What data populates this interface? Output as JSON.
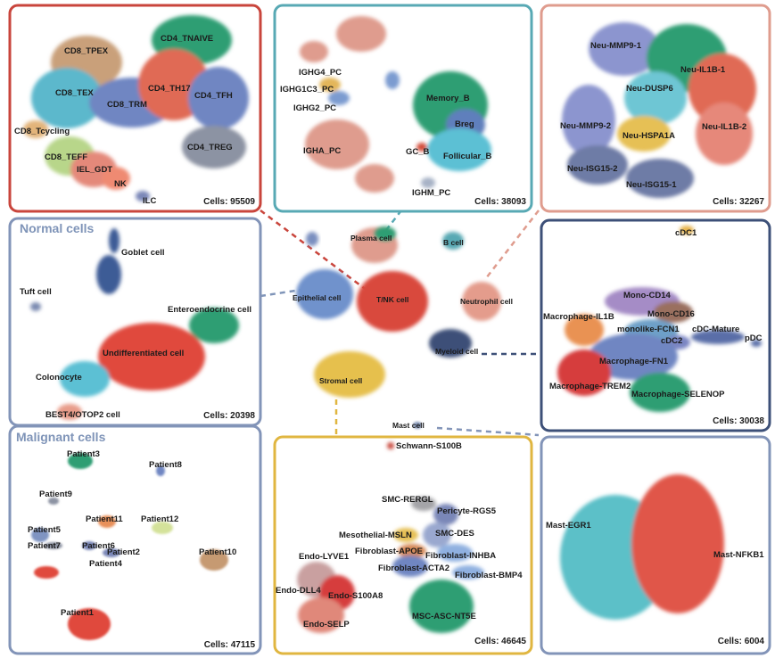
{
  "colors": {
    "red": "#c9453c",
    "teal": "#58a9b4",
    "salmon": "#df9c8e",
    "navy": "#3d5078",
    "slate": "#8294b8",
    "gold": "#e0b640",
    "purple": "#a58cc6",
    "green": "#2f9e73",
    "orange": "#e99253"
  },
  "center": {
    "labels": [
      "Plasma cell",
      "B cell",
      "Epithelial cell",
      "T/NK cell",
      "Neutrophil cell",
      "Myeloid cell",
      "Stromal cell",
      "Mast cell"
    ]
  },
  "tnk": {
    "count": "Cells: 95509",
    "labels": [
      "CD8_TPEX",
      "CD4_TNAIVE",
      "CD8_TEX",
      "CD4_TH17",
      "CD8_TRM",
      "CD4_TFH",
      "CD8_Tcycling",
      "CD4_TREG",
      "CD8_TEFF",
      "IEL_GDT",
      "NK",
      "ILC"
    ]
  },
  "plasma": {
    "count": "Cells: 38093",
    "labels": [
      "IGHG4_PC",
      "IGHG1C3_PC",
      "IGHG2_PC",
      "IGHA_PC",
      "Memory_B",
      "Breg",
      "GC_B",
      "Follicular_B",
      "IGHM_PC"
    ]
  },
  "neutro": {
    "count": "Cells: 32267",
    "labels": [
      "Neu-MMP9-1",
      "Neu-IL1B-1",
      "Neu-DUSP6",
      "Neu-MMP9-2",
      "Neu-HSPA1A",
      "Neu-IL1B-2",
      "Neu-ISG15-2",
      "Neu-ISG15-1"
    ]
  },
  "normal": {
    "title": "Normal cells",
    "count": "Cells: 20398",
    "labels": [
      "Goblet cell",
      "Tuft cell",
      "Enteroendocrine cell",
      "Undifferentiated cell",
      "Colonocyte",
      "BEST4/OTOP2 cell"
    ]
  },
  "malignant": {
    "title": "Malignant cells",
    "count": "Cells: 47115",
    "labels": [
      "Patient3",
      "Patient8",
      "Patient9",
      "Patient5",
      "Patient11",
      "Patient12",
      "Patient7",
      "Patient6",
      "Patient2",
      "Patient10",
      "Patient4",
      "Patient1"
    ]
  },
  "myeloid": {
    "count": "Cells: 30038",
    "labels": [
      "cDC1",
      "Mono-CD14",
      "Mono-CD16",
      "Macrophage-IL1B",
      "monolike-FCN1",
      "cDC-Mature",
      "pDC",
      "cDC2",
      "Macrophage-FN1",
      "Macrophage-TREM2",
      "Macrophage-SELENOP"
    ]
  },
  "stromal": {
    "count": "Cells: 46645",
    "labels": [
      "Schwann-S100B",
      "SMC-RERGL",
      "Pericyte-RGS5",
      "SMC-DES",
      "Mesothelial-MSLN",
      "Fibroblast-APOE",
      "Fibroblast-INHBA",
      "Endo-LYVE1",
      "Fibroblast-ACTA2",
      "Fibroblast-BMP4",
      "Endo-DLL4",
      "Endo-S100A8",
      "Endo-SELP",
      "MSC-ASC-NT5E"
    ]
  },
  "mast": {
    "count": "Cells: 6004",
    "labels": [
      "Mast-EGR1",
      "Mast-NFKB1"
    ]
  }
}
